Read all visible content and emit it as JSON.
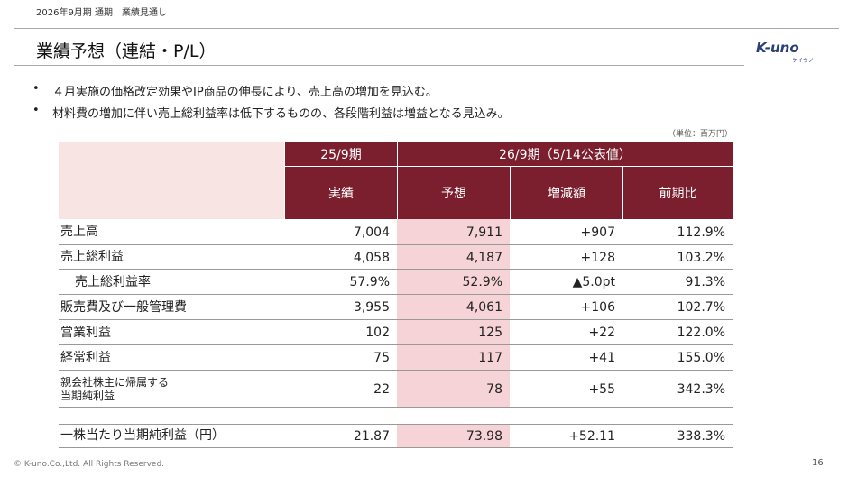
{
  "header": {
    "period": "2026年9月期 通期　業績見通し",
    "title": "業績予想（連結・P/L）",
    "logo": "K-uno",
    "logo_sub": "ケイウノ"
  },
  "bullets": [
    "４月実施の価格改定効果やIP商品の伸長により、売上高の増加を見込む。",
    "材料費の増加に伴い売上総利益率は低下するものの、各段階利益は増益となる見込み。"
  ],
  "unit": "（単位：百万円）",
  "table": {
    "group_headers": [
      "25/9期",
      "26/9期（5/14公表値）"
    ],
    "columns": [
      "実績",
      "予想",
      "増減額",
      "前期比"
    ],
    "rows": [
      [
        "売上高",
        "7,004",
        "7,911",
        "+907",
        "112.9%"
      ],
      [
        "売上総利益",
        "4,058",
        "4,187",
        "+128",
        "103.2%"
      ],
      [
        "売上総利益率",
        "57.9%",
        "52.9%",
        "▲5.0pt",
        "91.3%"
      ],
      [
        "販売費及び一般管理費",
        "3,955",
        "4,061",
        "+106",
        "102.7%"
      ],
      [
        "営業利益",
        "102",
        "125",
        "+22",
        "122.0%"
      ],
      [
        "経常利益",
        "75",
        "117",
        "+41",
        "155.0%"
      ],
      [
        "親会社株主に帰属する\n当期純利益",
        "22",
        "78",
        "+55",
        "342.3%"
      ],
      [
        "一株当たり当期純利益（円）",
        "21.87",
        "73.98",
        "+52.11",
        "338.3%"
      ]
    ]
  },
  "footer": {
    "copyright": "© K-uno.Co.,Ltd. All Rights Reserved.",
    "page": "16"
  }
}
